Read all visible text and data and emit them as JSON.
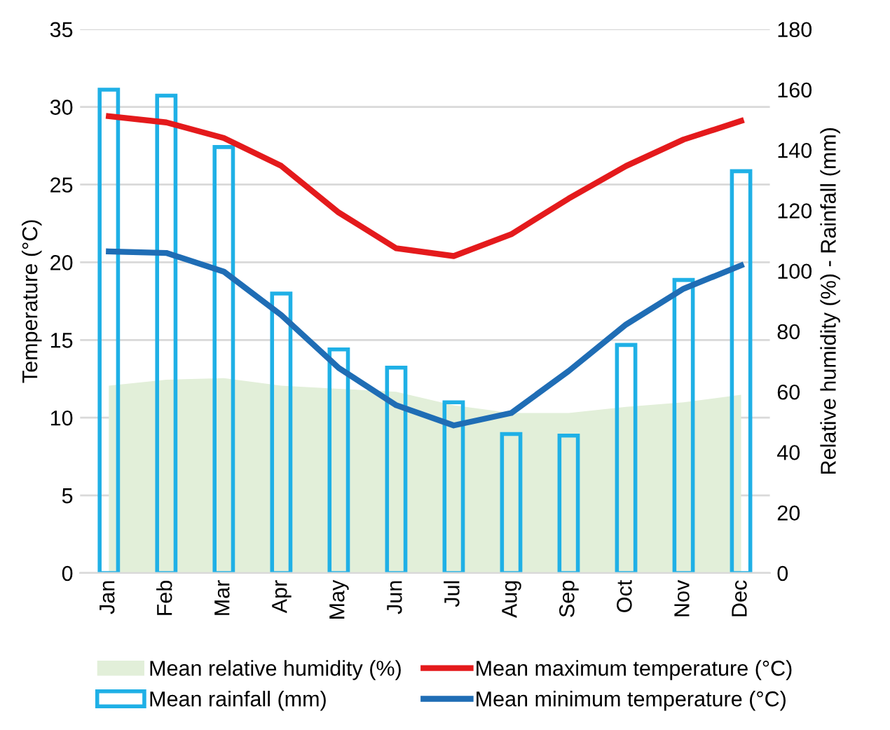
{
  "chart_data": {
    "type": "line",
    "categories": [
      "Jan",
      "Feb",
      "Mar",
      "Apr",
      "May",
      "Jun",
      "Jul",
      "Aug",
      "Sep",
      "Oct",
      "Nov",
      "Dec"
    ],
    "ylabel": "Temperature (°C)",
    "y2label": "Relative humidity (%) - Rainfall (mm)",
    "ylim": [
      0,
      35
    ],
    "yticks": [
      0,
      5,
      10,
      15,
      20,
      25,
      30,
      35
    ],
    "y2lim": [
      0,
      180
    ],
    "y2ticks": [
      0,
      20,
      40,
      60,
      80,
      100,
      120,
      140,
      160,
      180
    ],
    "grid": "y",
    "legend": "bottom",
    "series": [
      {
        "name": "Mean relative humidity (%)",
        "type": "area",
        "axis": "y2",
        "color": "#e2efd9",
        "values": [
          62,
          64,
          64.5,
          62,
          61,
          60,
          55.5,
          53,
          53,
          55,
          56.5,
          59
        ]
      },
      {
        "name": "Mean rainfall (mm)",
        "type": "bar",
        "axis": "y2",
        "color": "#1fb0e6",
        "values": [
          160,
          158,
          141,
          92.5,
          74,
          68,
          56.5,
          46,
          45.5,
          75.5,
          97,
          133
        ]
      },
      {
        "name": "Mean maximum temperature (°C)",
        "color": "#e41a1c",
        "values": [
          29.4,
          29.0,
          28.0,
          26.2,
          23.2,
          20.9,
          20.4,
          21.8,
          24.1,
          26.2,
          27.9,
          29.1
        ]
      },
      {
        "name": "Mean minimum temperature (°C)",
        "color": "#1f6db5",
        "values": [
          20.7,
          20.6,
          19.4,
          16.6,
          13.2,
          10.8,
          9.5,
          10.3,
          13.0,
          16.0,
          18.3,
          19.8
        ]
      }
    ]
  }
}
